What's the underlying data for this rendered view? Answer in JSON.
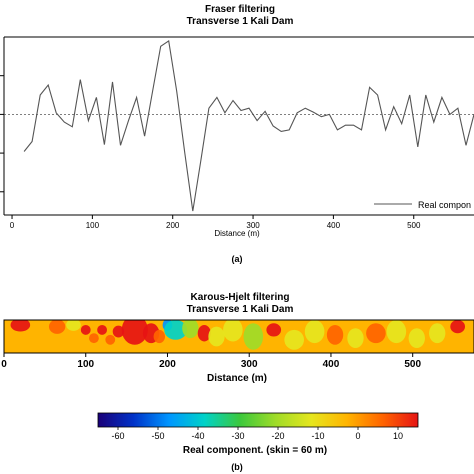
{
  "panel_a": {
    "title": "Fraser filtering",
    "subtitle": "Transverse 1 Kali Dam",
    "xlabel": "Distance (m)",
    "legend": "Real compon",
    "caption": "(a)"
  },
  "panel_b": {
    "title": "Karous-Hjelt filtering",
    "subtitle": "Transverse 1 Kali Dam",
    "xlabel": "Distance (m)",
    "colorbar_label": "Real component. (skin = 60 m)",
    "caption": "(b)"
  },
  "colors": {
    "line": "#555555",
    "colormap": [
      "#1a0078",
      "#0032c8",
      "#0096ff",
      "#00d2c8",
      "#3cc83c",
      "#a0dc28",
      "#e6e61e",
      "#ffb400",
      "#ff6400",
      "#e61414"
    ]
  },
  "chart_data": [
    {
      "type": "line",
      "title": "Fraser filtering",
      "subtitle": "Transverse 1 Kali Dam",
      "xlabel": "Distance (m)",
      "ylabel": "",
      "xlim": [
        -10,
        575
      ],
      "ylim": [
        -130,
        100
      ],
      "xticks": [
        0,
        100,
        200,
        300,
        400,
        500
      ],
      "yticks": [
        -100,
        -50,
        0,
        50
      ],
      "grid": false,
      "reference_line": 0,
      "legend_position": "bottom-right",
      "series": [
        {
          "name": "Real compon",
          "x": [
            15,
            25,
            35,
            45,
            55,
            65,
            75,
            85,
            95,
            105,
            115,
            125,
            135,
            145,
            155,
            165,
            175,
            185,
            195,
            205,
            215,
            225,
            235,
            245,
            255,
            265,
            275,
            285,
            295,
            305,
            315,
            325,
            335,
            345,
            355,
            365,
            375,
            385,
            395,
            405,
            415,
            425,
            435,
            445,
            455,
            465,
            475,
            485,
            495,
            505,
            515,
            525,
            535,
            545,
            555,
            565,
            575
          ],
          "y": [
            -48,
            -35,
            25,
            38,
            2,
            -10,
            -16,
            45,
            -8,
            22,
            -39,
            42,
            -40,
            -8,
            22,
            -28,
            30,
            88,
            95,
            30,
            -50,
            -125,
            -60,
            8,
            22,
            2,
            18,
            5,
            8,
            -8,
            4,
            -15,
            -22,
            -20,
            2,
            8,
            3,
            -3,
            0,
            -20,
            -14,
            -14,
            -20,
            35,
            25,
            -20,
            10,
            -12,
            25,
            -42,
            25,
            -10,
            22,
            0,
            8,
            -40,
            0
          ]
        }
      ]
    },
    {
      "type": "heatmap",
      "title": "Karous-Hjelt filtering",
      "subtitle": "Transverse 1 Kali Dam",
      "xlabel": "Distance (m)",
      "colorbar_label": "Real component. (skin = 60 m)",
      "xlim": [
        0,
        575
      ],
      "xticks": [
        0,
        100,
        200,
        300,
        400,
        500
      ],
      "color_range": [
        -65,
        15
      ],
      "colorbar_ticks": [
        -60,
        -50,
        -40,
        -30,
        -20,
        -10,
        0,
        10
      ],
      "background_value": 0,
      "anomalies": [
        {
          "x": 20,
          "depth": 0.15,
          "rx": 12,
          "ry": 0.2,
          "value": 15
        },
        {
          "x": 45,
          "depth": 0.25,
          "rx": 8,
          "ry": 0.18,
          "value": -5
        },
        {
          "x": 65,
          "depth": 0.2,
          "rx": 10,
          "ry": 0.22,
          "value": 10
        },
        {
          "x": 85,
          "depth": 0.15,
          "rx": 9,
          "ry": 0.18,
          "value": -10
        },
        {
          "x": 100,
          "depth": 0.3,
          "rx": 6,
          "ry": 0.15,
          "value": 12
        },
        {
          "x": 110,
          "depth": 0.55,
          "rx": 6,
          "ry": 0.15,
          "value": 10
        },
        {
          "x": 120,
          "depth": 0.3,
          "rx": 6,
          "ry": 0.15,
          "value": 13
        },
        {
          "x": 130,
          "depth": 0.6,
          "rx": 6,
          "ry": 0.15,
          "value": 9
        },
        {
          "x": 140,
          "depth": 0.35,
          "rx": 7,
          "ry": 0.18,
          "value": 11
        },
        {
          "x": 160,
          "depth": 0.3,
          "rx": 16,
          "ry": 0.45,
          "value": 15
        },
        {
          "x": 180,
          "depth": 0.4,
          "rx": 10,
          "ry": 0.3,
          "value": 13
        },
        {
          "x": 190,
          "depth": 0.5,
          "rx": 7,
          "ry": 0.2,
          "value": 3
        },
        {
          "x": 200,
          "depth": 0.15,
          "rx": 6,
          "ry": 0.18,
          "value": -45
        },
        {
          "x": 210,
          "depth": 0.3,
          "rx": 14,
          "ry": 0.3,
          "value": -35
        },
        {
          "x": 228,
          "depth": 0.25,
          "rx": 10,
          "ry": 0.3,
          "value": -20
        },
        {
          "x": 245,
          "depth": 0.4,
          "rx": 8,
          "ry": 0.25,
          "value": 12
        },
        {
          "x": 260,
          "depth": 0.5,
          "rx": 10,
          "ry": 0.3,
          "value": -12
        },
        {
          "x": 280,
          "depth": 0.3,
          "rx": 12,
          "ry": 0.35,
          "value": -15
        },
        {
          "x": 305,
          "depth": 0.5,
          "rx": 12,
          "ry": 0.4,
          "value": -18
        },
        {
          "x": 330,
          "depth": 0.3,
          "rx": 9,
          "ry": 0.2,
          "value": 12
        },
        {
          "x": 355,
          "depth": 0.6,
          "rx": 12,
          "ry": 0.3,
          "value": -15
        },
        {
          "x": 380,
          "depth": 0.35,
          "rx": 12,
          "ry": 0.35,
          "value": -14
        },
        {
          "x": 405,
          "depth": 0.45,
          "rx": 10,
          "ry": 0.3,
          "value": 6
        },
        {
          "x": 430,
          "depth": 0.55,
          "rx": 10,
          "ry": 0.3,
          "value": -16
        },
        {
          "x": 455,
          "depth": 0.4,
          "rx": 12,
          "ry": 0.3,
          "value": 5
        },
        {
          "x": 480,
          "depth": 0.35,
          "rx": 12,
          "ry": 0.35,
          "value": -16
        },
        {
          "x": 505,
          "depth": 0.55,
          "rx": 10,
          "ry": 0.3,
          "value": -10
        },
        {
          "x": 530,
          "depth": 0.4,
          "rx": 10,
          "ry": 0.3,
          "value": -14
        },
        {
          "x": 555,
          "depth": 0.2,
          "rx": 9,
          "ry": 0.2,
          "value": 12
        }
      ]
    }
  ]
}
